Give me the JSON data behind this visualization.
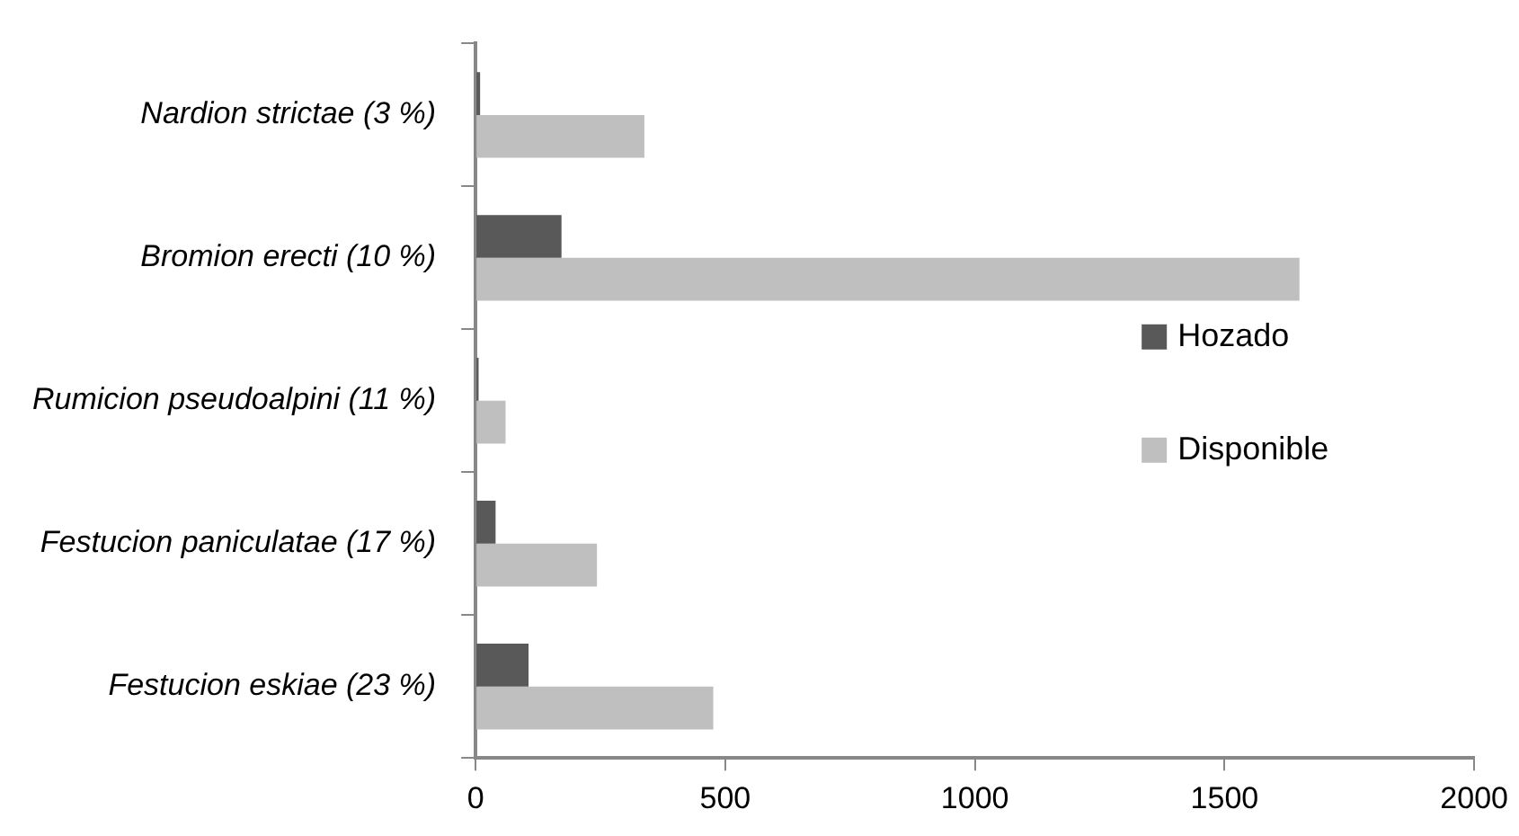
{
  "chart_data": {
    "type": "bar",
    "orientation": "horizontal",
    "categories": [
      "Nardion strictae (3 %)",
      "Bromion erecti (10 %)",
      "Rumicion pseudoalpini (11 %)",
      "Festucion paniculatae (17 %)",
      "Festucion eskiae (23 %)"
    ],
    "series": [
      {
        "name": "Hozado",
        "color": "#595959",
        "values": [
          9,
          172,
          6,
          40,
          106
        ]
      },
      {
        "name": "Disponible",
        "color": "#bfbfbf",
        "values": [
          338,
          1650,
          60,
          243,
          476
        ]
      }
    ],
    "xlim": [
      0,
      2000
    ],
    "xticks": [
      0,
      500,
      1000,
      1500,
      2000
    ],
    "grid": false,
    "legend": "right"
  }
}
